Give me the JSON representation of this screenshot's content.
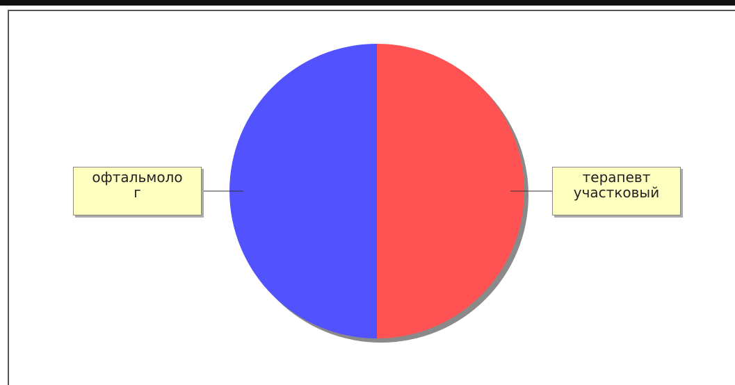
{
  "chart_data": {
    "type": "pie",
    "title": "",
    "slices": [
      {
        "label": "терапевт\nучастковый",
        "value": 50,
        "color": "#ff5252"
      },
      {
        "label": "офтальмоло\nг",
        "value": 50,
        "color": "#5252ff"
      }
    ],
    "legend": "none"
  }
}
